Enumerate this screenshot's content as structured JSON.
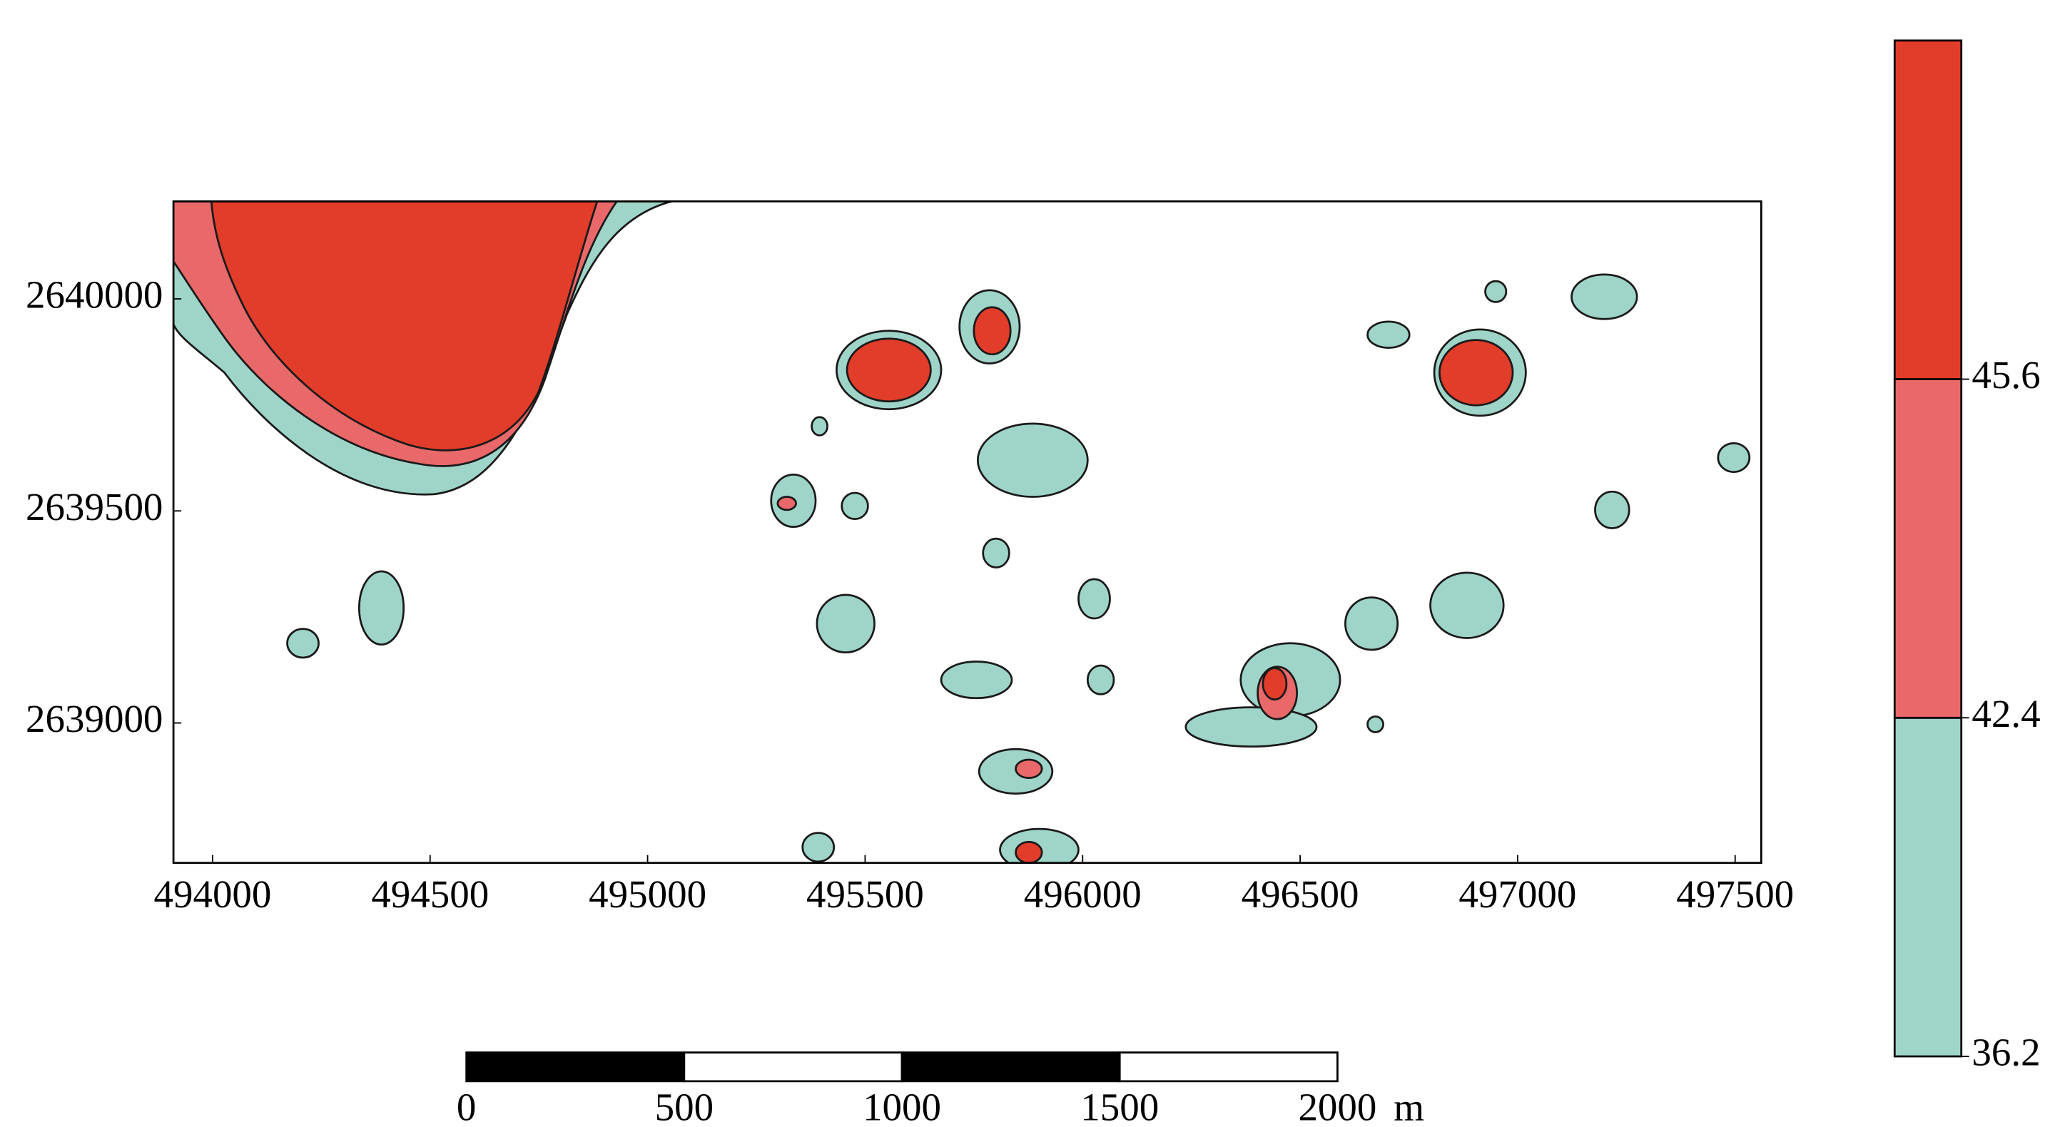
{
  "chart_data": {
    "type": "contour",
    "xlim": [
      493910,
      497560
    ],
    "ylim": [
      2638670,
      2640230
    ],
    "xticks": [
      494000,
      494500,
      495000,
      495500,
      496000,
      496500,
      497000,
      497500
    ],
    "yticks": [
      2639000,
      2639500,
      2640000
    ],
    "levels": [
      36.2,
      42.4,
      45.6
    ],
    "colors": [
      "#9fd4c8",
      "#e9696a",
      "#e23c2a"
    ],
    "scale_bar": {
      "ticks": [
        0,
        500,
        1000,
        1500,
        2000
      ],
      "unit": "m"
    }
  }
}
